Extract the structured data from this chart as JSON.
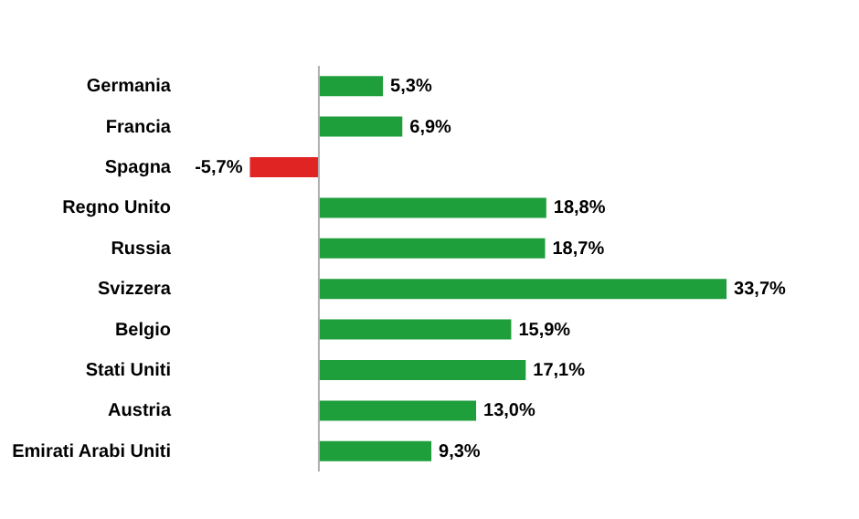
{
  "chart_data": {
    "type": "bar",
    "orientation": "horizontal",
    "categories": [
      "Germania",
      "Francia",
      "Spagna",
      "Regno Unito",
      "Russia",
      "Svizzera",
      "Belgio",
      "Stati Uniti",
      "Austria",
      "Emirati Arabi Uniti"
    ],
    "values": [
      5.3,
      6.9,
      -5.7,
      18.8,
      18.7,
      33.7,
      15.9,
      17.1,
      13.0,
      9.3
    ],
    "colors": [
      "#1f9e3c",
      "#1f9e3c",
      "#e02424",
      "#1f9e3c",
      "#1f9e3c",
      "#1f9e3c",
      "#1f9e3c",
      "#1f9e3c",
      "#1f9e3c",
      "#1f9e3c"
    ],
    "value_labels": [
      "5,3%",
      "6,9%",
      "-5,7%",
      "18,8%",
      "18,7%",
      "33,7%",
      "15,9%",
      "17,1%",
      "13,0%",
      "9,3%"
    ]
  }
}
